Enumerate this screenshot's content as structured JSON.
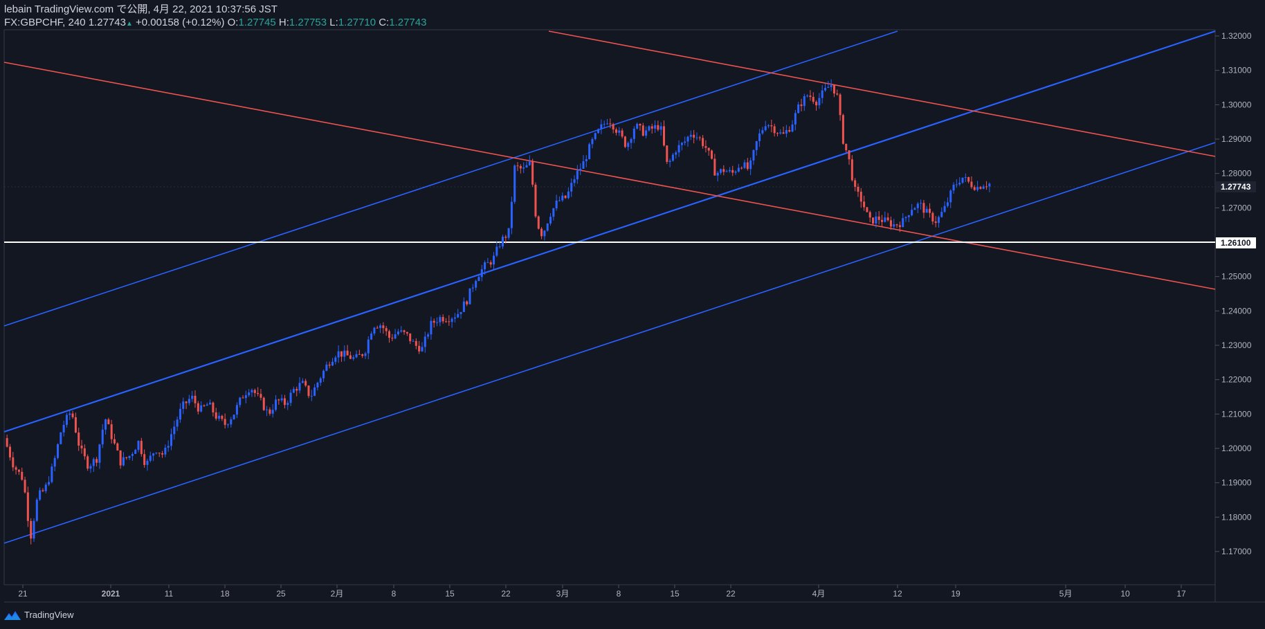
{
  "header": {
    "line1": "lebain TradingView.com で公開, 4月 22, 2021 10:37:56 JST",
    "symbol": "FX:GBPCHF, 240",
    "last": "1.27743",
    "change": "+0.00158 (+0.12%)",
    "o_label": "O:",
    "o_value": "1.27745",
    "h_label": "H:",
    "h_value": "1.27753",
    "l_label": "L:",
    "l_value": "1.27710",
    "c_label": "C:",
    "c_value": "1.27743"
  },
  "brand": {
    "name": "TradingView",
    "icon": "tradingview-logo-icon"
  },
  "colors": {
    "up": "#2962ff",
    "down": "#ef5350",
    "background": "#131722",
    "support": "#ffffff"
  },
  "chart_data": {
    "type": "candlestick",
    "symbol": "FX:GBPCHF",
    "interval": "240",
    "ylim": [
      1.16,
      1.325
    ],
    "y_ticks": [
      "1.32000",
      "1.31000",
      "1.30000",
      "1.29000",
      "1.28000",
      "1.27000",
      "1.26000",
      "1.25000",
      "1.24000",
      "1.23000",
      "1.22000",
      "1.21000",
      "1.20000",
      "1.19000",
      "1.18000",
      "1.17000"
    ],
    "x_ticks": [
      "21",
      "2021",
      "11",
      "18",
      "25",
      "2月",
      "8",
      "15",
      "22",
      "3月",
      "8",
      "15",
      "22",
      "4月",
      "12",
      "19",
      "5月",
      "10",
      "17"
    ],
    "price_labels": [
      "1.27743",
      "1.26100"
    ],
    "close_path": [
      [
        0,
        1.203
      ],
      [
        0.008,
        1.195
      ],
      [
        0.016,
        1.191
      ],
      [
        0.022,
        1.174
      ],
      [
        0.028,
        1.186
      ],
      [
        0.034,
        1.188
      ],
      [
        0.041,
        1.195
      ],
      [
        0.048,
        1.206
      ],
      [
        0.056,
        1.211
      ],
      [
        0.063,
        1.2
      ],
      [
        0.07,
        1.195
      ],
      [
        0.077,
        1.197
      ],
      [
        0.084,
        1.209
      ],
      [
        0.09,
        1.203
      ],
      [
        0.097,
        1.196
      ],
      [
        0.105,
        1.198
      ],
      [
        0.112,
        1.202
      ],
      [
        0.118,
        1.195
      ],
      [
        0.126,
        1.2
      ],
      [
        0.133,
        1.198
      ],
      [
        0.14,
        1.205
      ],
      [
        0.148,
        1.212
      ],
      [
        0.156,
        1.215
      ],
      [
        0.163,
        1.211
      ],
      [
        0.17,
        1.213
      ],
      [
        0.177,
        1.209
      ],
      [
        0.184,
        1.207
      ],
      [
        0.191,
        1.21
      ],
      [
        0.198,
        1.215
      ],
      [
        0.205,
        1.218
      ],
      [
        0.213,
        1.214
      ],
      [
        0.22,
        1.21
      ],
      [
        0.227,
        1.214
      ],
      [
        0.234,
        1.213
      ],
      [
        0.241,
        1.217
      ],
      [
        0.248,
        1.219
      ],
      [
        0.255,
        1.215
      ],
      [
        0.262,
        1.22
      ],
      [
        0.27,
        1.225
      ],
      [
        0.277,
        1.228
      ],
      [
        0.285,
        1.227
      ],
      [
        0.292,
        1.226
      ],
      [
        0.3,
        1.228
      ],
      [
        0.307,
        1.236
      ],
      [
        0.314,
        1.236
      ],
      [
        0.321,
        1.232
      ],
      [
        0.328,
        1.234
      ],
      [
        0.335,
        1.233
      ],
      [
        0.342,
        1.23
      ],
      [
        0.348,
        1.229
      ],
      [
        0.355,
        1.236
      ],
      [
        0.362,
        1.238
      ],
      [
        0.37,
        1.238
      ],
      [
        0.377,
        1.239
      ],
      [
        0.385,
        1.243
      ],
      [
        0.393,
        1.25
      ],
      [
        0.4,
        1.253
      ],
      [
        0.407,
        1.255
      ],
      [
        0.413,
        1.26
      ],
      [
        0.42,
        1.263
      ],
      [
        0.425,
        1.282
      ],
      [
        0.432,
        1.281
      ],
      [
        0.438,
        1.283
      ],
      [
        0.443,
        1.266
      ],
      [
        0.448,
        1.262
      ],
      [
        0.454,
        1.268
      ],
      [
        0.461,
        1.272
      ],
      [
        0.468,
        1.273
      ],
      [
        0.475,
        1.279
      ],
      [
        0.482,
        1.283
      ],
      [
        0.489,
        1.289
      ],
      [
        0.496,
        1.293
      ],
      [
        0.503,
        1.296
      ],
      [
        0.511,
        1.292
      ],
      [
        0.518,
        1.288
      ],
      [
        0.525,
        1.294
      ],
      [
        0.532,
        1.292
      ],
      [
        0.539,
        1.293
      ],
      [
        0.546,
        1.294
      ],
      [
        0.552,
        1.282
      ],
      [
        0.559,
        1.287
      ],
      [
        0.566,
        1.289
      ],
      [
        0.572,
        1.292
      ],
      [
        0.579,
        1.29
      ],
      [
        0.585,
        1.287
      ],
      [
        0.592,
        1.28
      ],
      [
        0.599,
        1.281
      ],
      [
        0.606,
        1.28
      ],
      [
        0.613,
        1.283
      ],
      [
        0.62,
        1.281
      ],
      [
        0.627,
        1.29
      ],
      [
        0.634,
        1.295
      ],
      [
        0.641,
        1.293
      ],
      [
        0.648,
        1.291
      ],
      [
        0.655,
        1.294
      ],
      [
        0.662,
        1.3
      ],
      [
        0.669,
        1.303
      ],
      [
        0.676,
        1.301
      ],
      [
        0.683,
        1.304
      ],
      [
        0.688,
        1.306
      ],
      [
        0.693,
        1.303
      ],
      [
        0.698,
        1.29
      ],
      [
        0.703,
        1.284
      ],
      [
        0.708,
        1.275
      ],
      [
        0.714,
        1.272
      ],
      [
        0.72,
        1.266
      ],
      [
        0.727,
        1.267
      ],
      [
        0.734,
        1.266
      ],
      [
        0.741,
        1.265
      ],
      [
        0.748,
        1.266
      ],
      [
        0.755,
        1.27
      ],
      [
        0.762,
        1.271
      ],
      [
        0.769,
        1.268
      ],
      [
        0.776,
        1.266
      ],
      [
        0.783,
        1.27
      ],
      [
        0.79,
        1.276
      ],
      [
        0.797,
        1.279
      ],
      [
        0.804,
        1.277
      ],
      [
        0.81,
        1.276
      ],
      [
        0.815,
        1.277
      ],
      [
        0.82,
        1.277
      ]
    ]
  }
}
